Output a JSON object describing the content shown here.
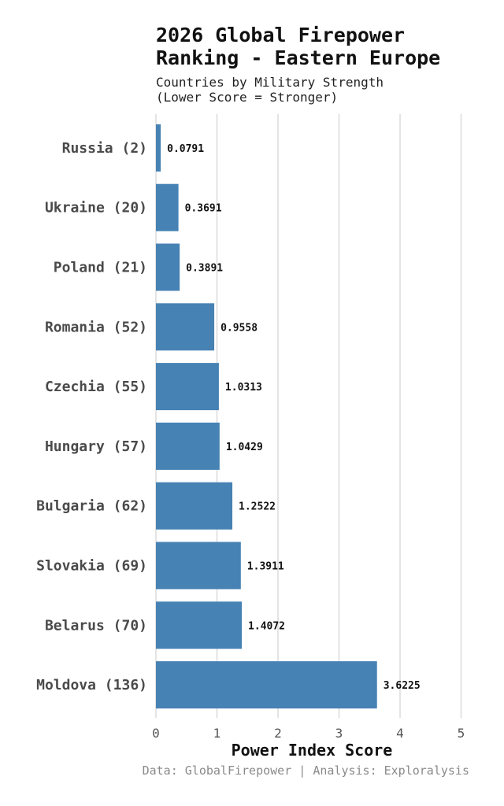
{
  "chart_data": {
    "type": "bar",
    "orientation": "horizontal",
    "title": "2026 Global Firepower Ranking - Eastern Europe",
    "subtitle": "Countries by Military Strength\n(Lower Score = Stronger)",
    "xlabel": "Power Index Score",
    "ylabel": "",
    "xlim": [
      0,
      5
    ],
    "xticks": [
      "0",
      "1",
      "2",
      "3",
      "4",
      "5"
    ],
    "grid": "vertical",
    "bar_color": "#4682b4",
    "categories": [
      "Russia (2)",
      "Ukraine (20)",
      "Poland (21)",
      "Romania (52)",
      "Czechia (55)",
      "Hungary (57)",
      "Bulgaria (62)",
      "Slovakia (69)",
      "Belarus (70)",
      "Moldova (136)"
    ],
    "values": [
      0.0791,
      0.3691,
      0.3891,
      0.9558,
      1.0313,
      1.0429,
      1.2522,
      1.3911,
      1.4072,
      3.6225
    ],
    "value_labels": [
      "0.0791",
      "0.3691",
      "0.3891",
      "0.9558",
      "1.0313",
      "1.0429",
      "1.2522",
      "1.3911",
      "1.4072",
      "3.6225"
    ]
  },
  "source": "Data: GlobalFirepower | Analysis: Exploralysis"
}
